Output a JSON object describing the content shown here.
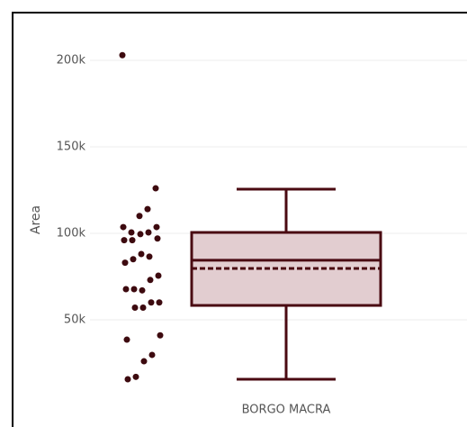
{
  "chart_data": {
    "type": "box",
    "y_label": "Area",
    "categories": [
      "BORGO MACRA"
    ],
    "color": "#4a0a12",
    "box_fill": "#e2cdd0",
    "box": {
      "lower_whisker": 15600,
      "q1": 58300,
      "median": 84400,
      "mean": 79700,
      "q3": 100500,
      "upper_whisker": 125500
    },
    "points": [
      203000,
      126000,
      114000,
      110000,
      100500,
      103600,
      103600,
      100500,
      99500,
      96000,
      96000,
      97000,
      86500,
      88000,
      85000,
      83000,
      75500,
      73000,
      67000,
      67700,
      67700,
      60000,
      60000,
      57000,
      57000,
      38500,
      41000,
      29700,
      26000,
      17000,
      15600
    ],
    "ylim": [
      -12000,
      227600
    ],
    "yticks": [
      {
        "value": 50000,
        "label": "50k"
      },
      {
        "value": 100000,
        "label": "100k"
      },
      {
        "value": 150000,
        "label": "150k"
      },
      {
        "value": 200000,
        "label": "200k"
      }
    ],
    "grid": true
  }
}
